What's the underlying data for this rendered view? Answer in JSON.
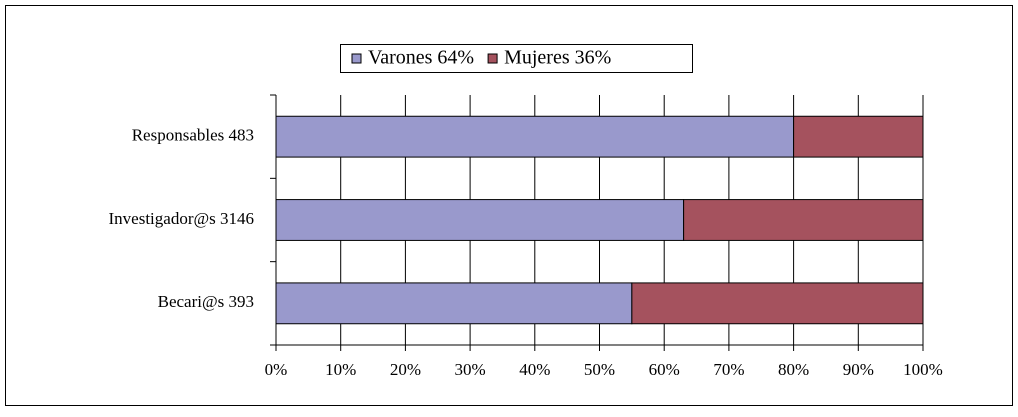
{
  "chart_data": {
    "type": "stacked_barh",
    "categories": [
      "Responsables 483",
      "Investigador@s 3146",
      "Becari@s 393"
    ],
    "series": [
      {
        "name": "Varones 64%",
        "color": "#9999cc",
        "values": [
          80,
          63,
          55
        ]
      },
      {
        "name": "Mujeres 36%",
        "color": "#a5525e",
        "values": [
          20,
          37,
          45
        ]
      }
    ],
    "xlim": [
      0,
      100
    ],
    "xticks": [
      {
        "value": 0,
        "label": "0%"
      },
      {
        "value": 10,
        "label": "10%"
      },
      {
        "value": 20,
        "label": "20%"
      },
      {
        "value": 30,
        "label": "30%"
      },
      {
        "value": 40,
        "label": "40%"
      },
      {
        "value": 50,
        "label": "50%"
      },
      {
        "value": 60,
        "label": "60%"
      },
      {
        "value": 70,
        "label": "70%"
      },
      {
        "value": 80,
        "label": "80%"
      },
      {
        "value": 90,
        "label": "90%"
      },
      {
        "value": 100,
        "label": "100%"
      }
    ],
    "grid": true,
    "legend": "top"
  }
}
